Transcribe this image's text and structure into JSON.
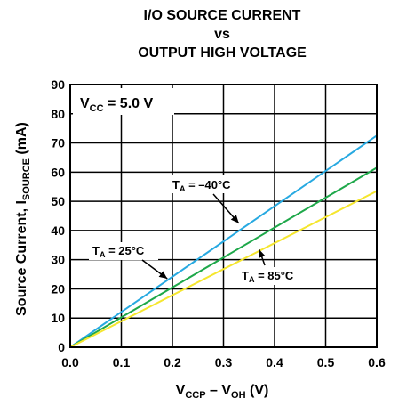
{
  "chart_data": {
    "type": "line",
    "title_lines": [
      "I/O SOURCE CURRENT",
      "vs",
      "OUTPUT HIGH VOLTAGE"
    ],
    "xlabel": {
      "main": "V",
      "sub1": "CCP",
      "mid": " – V",
      "sub2": "OH",
      "unit": " (V)"
    },
    "ylabel": {
      "main": "Source Current, I",
      "sub": "SOURCE",
      "unit": " (mA)"
    },
    "xlim": [
      0.0,
      0.6
    ],
    "ylim": [
      0,
      90
    ],
    "x_ticks": [
      "0.0",
      "0.1",
      "0.2",
      "0.3",
      "0.4",
      "0.5",
      "0.6"
    ],
    "y_ticks": [
      "0",
      "10",
      "20",
      "30",
      "40",
      "50",
      "60",
      "70",
      "80",
      "90"
    ],
    "grid": true,
    "condition": {
      "main": "V",
      "sub": "CC",
      "rest": " = 5.0 V"
    },
    "series": [
      {
        "name": "T_A = −40°C",
        "color": "#27a9e1",
        "x": [
          0.0,
          0.6
        ],
        "y": [
          0,
          72.5
        ]
      },
      {
        "name": "T_A = 25°C",
        "color": "#1ea84a",
        "x": [
          0.0,
          0.6
        ],
        "y": [
          0,
          61.5
        ]
      },
      {
        "name": "T_A = 85°C",
        "color": "#f5e62e",
        "x": [
          0.0,
          0.6
        ],
        "y": [
          0,
          53.5
        ]
      }
    ],
    "annotations": [
      {
        "main": "T",
        "sub": "A",
        "rest": " = –40°C",
        "target": [
          0.33,
          42.5
        ]
      },
      {
        "main": "T",
        "sub": "A",
        "rest": " = 25°C",
        "target": [
          0.19,
          23.5
        ]
      },
      {
        "main": "T",
        "sub": "A",
        "rest": " = 85°C",
        "target": [
          0.37,
          33.5
        ]
      }
    ]
  }
}
